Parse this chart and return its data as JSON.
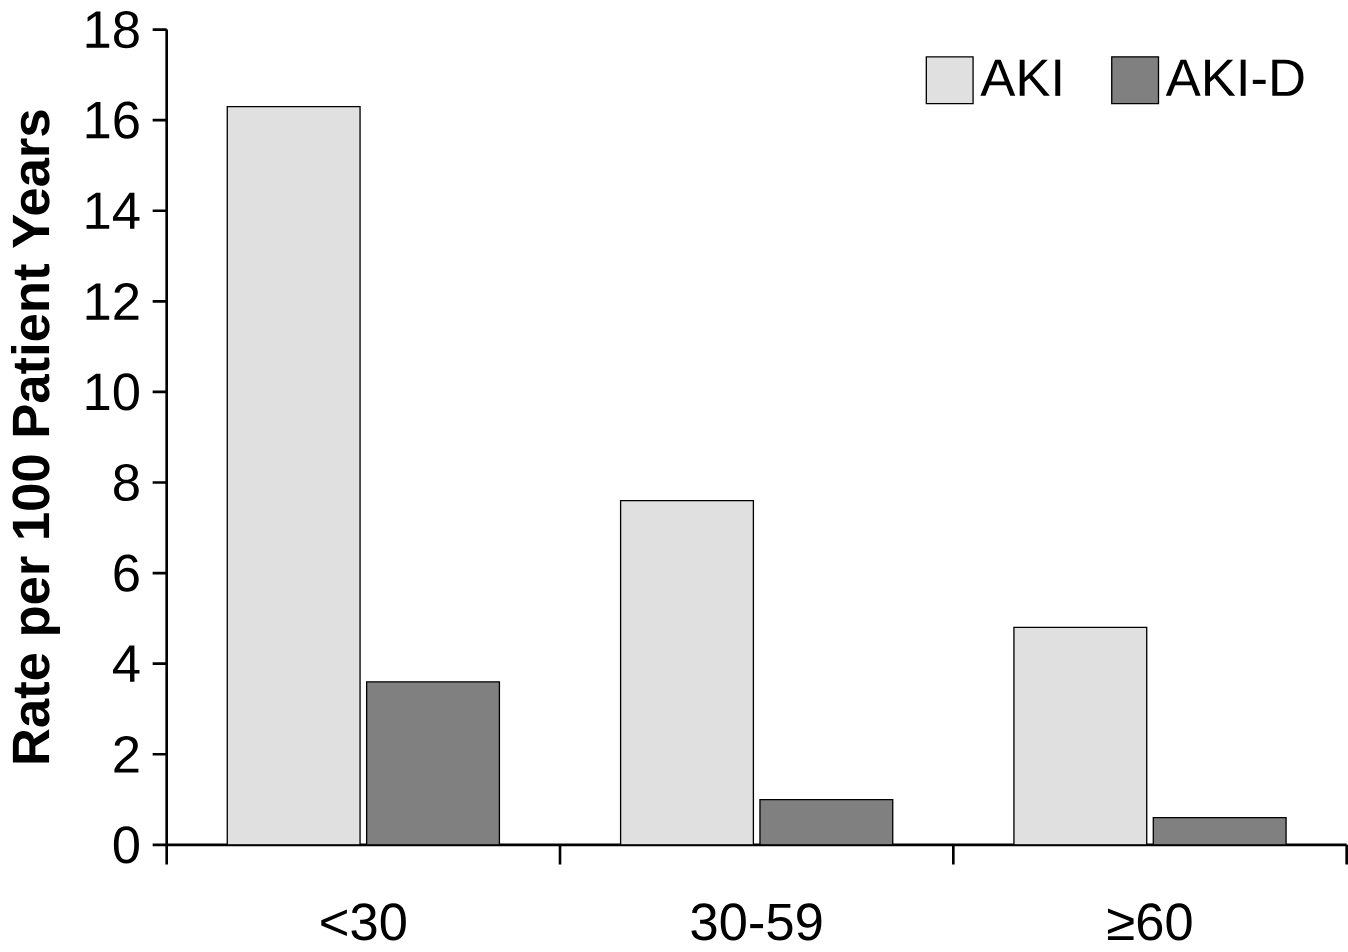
{
  "chart_data": {
    "type": "bar",
    "ylabel": "Rate per 100 Patient Years",
    "categories": [
      "<30",
      "30-59",
      "≥60"
    ],
    "series": [
      {
        "name": "AKI",
        "color": "#e0e0e0",
        "values": [
          16.3,
          7.6,
          4.8
        ]
      },
      {
        "name": "AKI-D",
        "color": "#808080",
        "values": [
          3.6,
          1.0,
          0.6
        ]
      }
    ],
    "ylim": [
      0,
      18
    ],
    "yticks": [
      0,
      2,
      4,
      6,
      8,
      10,
      12,
      14,
      16,
      18
    ],
    "grid": false,
    "legend": "top right"
  }
}
